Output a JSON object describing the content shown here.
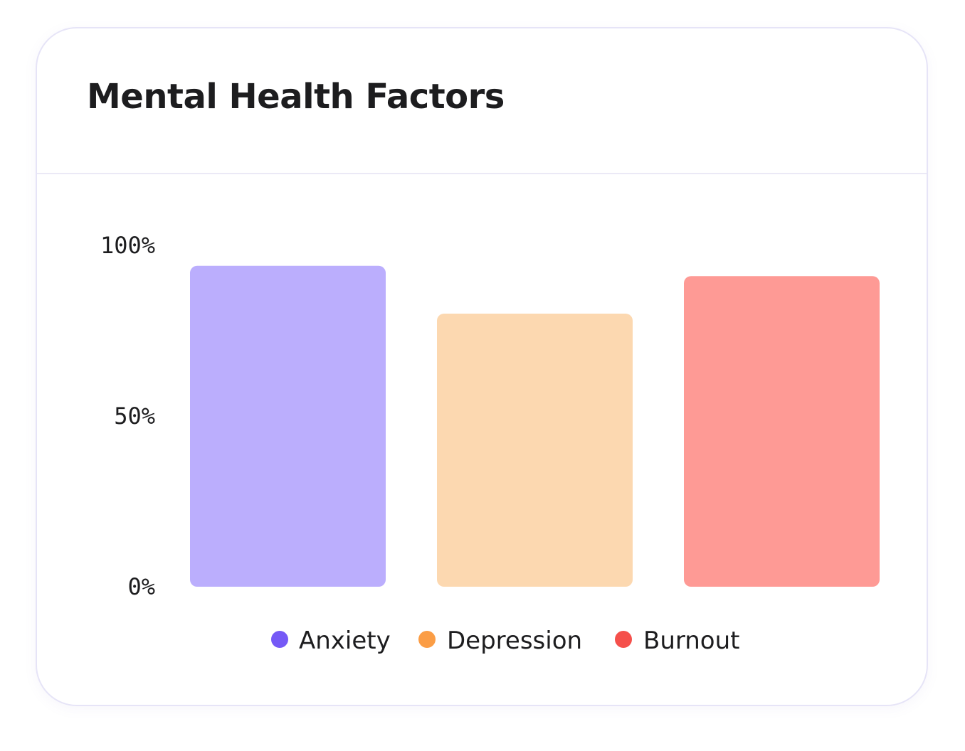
{
  "card": {
    "title": "Mental Health Factors"
  },
  "chart_data": {
    "type": "bar",
    "title": "Mental Health Factors",
    "categories": [
      "Anxiety",
      "Depression",
      "Burnout"
    ],
    "values": [
      94,
      80,
      91
    ],
    "ylim": [
      0,
      100
    ],
    "yticks": [
      {
        "value": 100,
        "label": "100%"
      },
      {
        "value": 50,
        "label": "50%"
      },
      {
        "value": 0,
        "label": "0%"
      }
    ],
    "unit": "%",
    "grid": false,
    "legend_position": "bottom-center",
    "bar_colors": [
      "#bbaefd",
      "#fcd8b0",
      "#fe9a95"
    ],
    "legend": [
      {
        "label": "Anxiety",
        "color": "#7559f6"
      },
      {
        "label": "Depression",
        "color": "#fb9d45"
      },
      {
        "label": "Burnout",
        "color": "#f5504b"
      }
    ]
  }
}
